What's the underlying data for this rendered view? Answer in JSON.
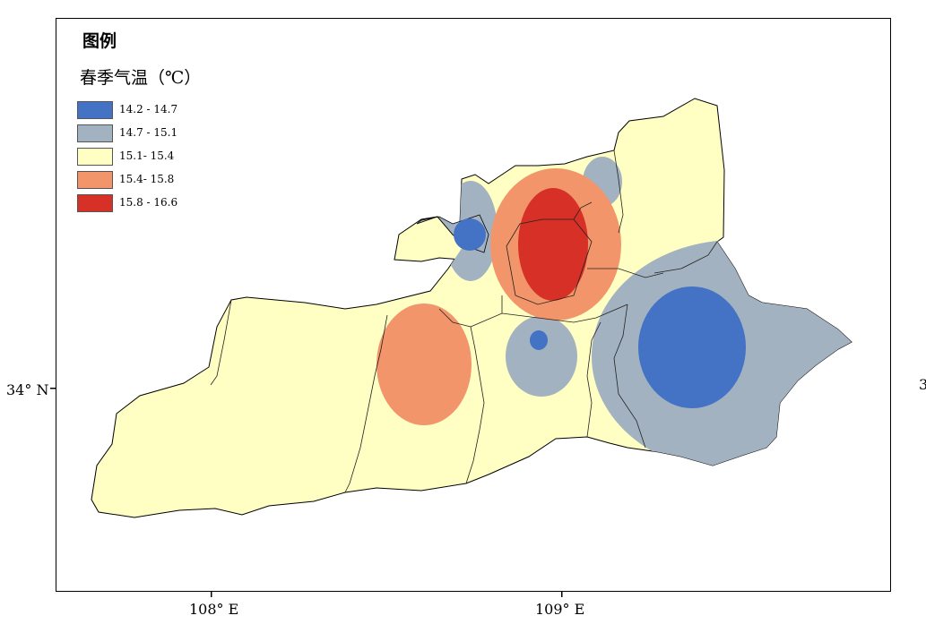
{
  "legend": {
    "title": "图例",
    "subtitle": "春季气温（℃）",
    "items": [
      {
        "label": "14.2 - 14.7",
        "color": "#4472c4"
      },
      {
        "label": "14.7 - 15.1",
        "color": "#a3b2c0"
      },
      {
        "label": "15.1- 15.4",
        "color": "#ffffc3"
      },
      {
        "label": "15.4- 15.8",
        "color": "#f2956b"
      },
      {
        "label": "15.8 - 16.6",
        "color": "#d73027"
      }
    ]
  },
  "axes": {
    "latitude_label": "34° N",
    "latitude_label_right": "3",
    "longitude_labels": [
      "108° E",
      "109° E"
    ]
  }
}
